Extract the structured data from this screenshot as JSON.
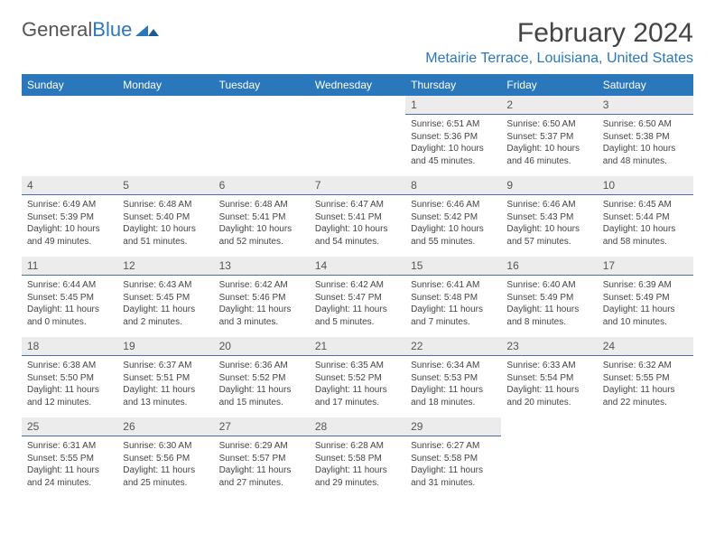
{
  "brand": {
    "part1": "General",
    "part2": "Blue"
  },
  "header": {
    "month_title": "February 2024",
    "location": "Metairie Terrace, Louisiana, United States"
  },
  "colors": {
    "brand_blue": "#2a77bb",
    "header_bg": "#2a77bb",
    "header_text": "#ffffff",
    "daynum_bg": "#ececec",
    "daynum_border": "#4a6ea8",
    "body_text": "#444444",
    "page_bg": "#ffffff"
  },
  "weekdays": [
    "Sunday",
    "Monday",
    "Tuesday",
    "Wednesday",
    "Thursday",
    "Friday",
    "Saturday"
  ],
  "calendar": {
    "type": "table",
    "columns": 7,
    "rows": 5,
    "font_size_body": 10,
    "font_size_daynum": 12,
    "cells": [
      [
        null,
        null,
        null,
        null,
        {
          "day": "1",
          "sunrise": "Sunrise: 6:51 AM",
          "sunset": "Sunset: 5:36 PM",
          "daylight": "Daylight: 10 hours and 45 minutes."
        },
        {
          "day": "2",
          "sunrise": "Sunrise: 6:50 AM",
          "sunset": "Sunset: 5:37 PM",
          "daylight": "Daylight: 10 hours and 46 minutes."
        },
        {
          "day": "3",
          "sunrise": "Sunrise: 6:50 AM",
          "sunset": "Sunset: 5:38 PM",
          "daylight": "Daylight: 10 hours and 48 minutes."
        }
      ],
      [
        {
          "day": "4",
          "sunrise": "Sunrise: 6:49 AM",
          "sunset": "Sunset: 5:39 PM",
          "daylight": "Daylight: 10 hours and 49 minutes."
        },
        {
          "day": "5",
          "sunrise": "Sunrise: 6:48 AM",
          "sunset": "Sunset: 5:40 PM",
          "daylight": "Daylight: 10 hours and 51 minutes."
        },
        {
          "day": "6",
          "sunrise": "Sunrise: 6:48 AM",
          "sunset": "Sunset: 5:41 PM",
          "daylight": "Daylight: 10 hours and 52 minutes."
        },
        {
          "day": "7",
          "sunrise": "Sunrise: 6:47 AM",
          "sunset": "Sunset: 5:41 PM",
          "daylight": "Daylight: 10 hours and 54 minutes."
        },
        {
          "day": "8",
          "sunrise": "Sunrise: 6:46 AM",
          "sunset": "Sunset: 5:42 PM",
          "daylight": "Daylight: 10 hours and 55 minutes."
        },
        {
          "day": "9",
          "sunrise": "Sunrise: 6:46 AM",
          "sunset": "Sunset: 5:43 PM",
          "daylight": "Daylight: 10 hours and 57 minutes."
        },
        {
          "day": "10",
          "sunrise": "Sunrise: 6:45 AM",
          "sunset": "Sunset: 5:44 PM",
          "daylight": "Daylight: 10 hours and 58 minutes."
        }
      ],
      [
        {
          "day": "11",
          "sunrise": "Sunrise: 6:44 AM",
          "sunset": "Sunset: 5:45 PM",
          "daylight": "Daylight: 11 hours and 0 minutes."
        },
        {
          "day": "12",
          "sunrise": "Sunrise: 6:43 AM",
          "sunset": "Sunset: 5:45 PM",
          "daylight": "Daylight: 11 hours and 2 minutes."
        },
        {
          "day": "13",
          "sunrise": "Sunrise: 6:42 AM",
          "sunset": "Sunset: 5:46 PM",
          "daylight": "Daylight: 11 hours and 3 minutes."
        },
        {
          "day": "14",
          "sunrise": "Sunrise: 6:42 AM",
          "sunset": "Sunset: 5:47 PM",
          "daylight": "Daylight: 11 hours and 5 minutes."
        },
        {
          "day": "15",
          "sunrise": "Sunrise: 6:41 AM",
          "sunset": "Sunset: 5:48 PM",
          "daylight": "Daylight: 11 hours and 7 minutes."
        },
        {
          "day": "16",
          "sunrise": "Sunrise: 6:40 AM",
          "sunset": "Sunset: 5:49 PM",
          "daylight": "Daylight: 11 hours and 8 minutes."
        },
        {
          "day": "17",
          "sunrise": "Sunrise: 6:39 AM",
          "sunset": "Sunset: 5:49 PM",
          "daylight": "Daylight: 11 hours and 10 minutes."
        }
      ],
      [
        {
          "day": "18",
          "sunrise": "Sunrise: 6:38 AM",
          "sunset": "Sunset: 5:50 PM",
          "daylight": "Daylight: 11 hours and 12 minutes."
        },
        {
          "day": "19",
          "sunrise": "Sunrise: 6:37 AM",
          "sunset": "Sunset: 5:51 PM",
          "daylight": "Daylight: 11 hours and 13 minutes."
        },
        {
          "day": "20",
          "sunrise": "Sunrise: 6:36 AM",
          "sunset": "Sunset: 5:52 PM",
          "daylight": "Daylight: 11 hours and 15 minutes."
        },
        {
          "day": "21",
          "sunrise": "Sunrise: 6:35 AM",
          "sunset": "Sunset: 5:52 PM",
          "daylight": "Daylight: 11 hours and 17 minutes."
        },
        {
          "day": "22",
          "sunrise": "Sunrise: 6:34 AM",
          "sunset": "Sunset: 5:53 PM",
          "daylight": "Daylight: 11 hours and 18 minutes."
        },
        {
          "day": "23",
          "sunrise": "Sunrise: 6:33 AM",
          "sunset": "Sunset: 5:54 PM",
          "daylight": "Daylight: 11 hours and 20 minutes."
        },
        {
          "day": "24",
          "sunrise": "Sunrise: 6:32 AM",
          "sunset": "Sunset: 5:55 PM",
          "daylight": "Daylight: 11 hours and 22 minutes."
        }
      ],
      [
        {
          "day": "25",
          "sunrise": "Sunrise: 6:31 AM",
          "sunset": "Sunset: 5:55 PM",
          "daylight": "Daylight: 11 hours and 24 minutes."
        },
        {
          "day": "26",
          "sunrise": "Sunrise: 6:30 AM",
          "sunset": "Sunset: 5:56 PM",
          "daylight": "Daylight: 11 hours and 25 minutes."
        },
        {
          "day": "27",
          "sunrise": "Sunrise: 6:29 AM",
          "sunset": "Sunset: 5:57 PM",
          "daylight": "Daylight: 11 hours and 27 minutes."
        },
        {
          "day": "28",
          "sunrise": "Sunrise: 6:28 AM",
          "sunset": "Sunset: 5:58 PM",
          "daylight": "Daylight: 11 hours and 29 minutes."
        },
        {
          "day": "29",
          "sunrise": "Sunrise: 6:27 AM",
          "sunset": "Sunset: 5:58 PM",
          "daylight": "Daylight: 11 hours and 31 minutes."
        },
        null,
        null
      ]
    ]
  }
}
